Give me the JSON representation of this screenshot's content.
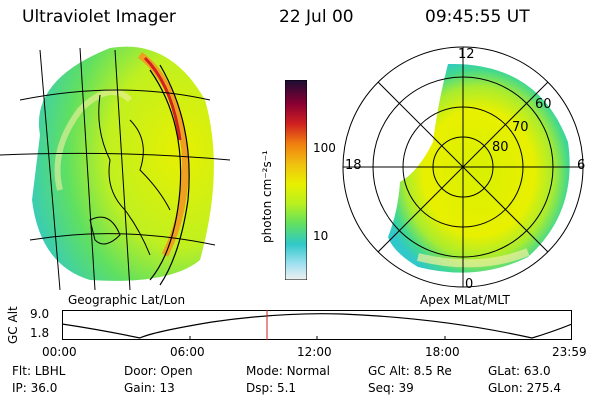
{
  "header": {
    "title": "Ultraviolet Imager",
    "date": "22 Jul 00",
    "time": "09:45:55 UT"
  },
  "left_panel": {
    "caption": "Geographic Lat/Lon"
  },
  "right_panel": {
    "caption": "Apex MLat/MLT",
    "mlt_labels": {
      "top": "12",
      "left": "18",
      "right": "6",
      "bottom": "0"
    },
    "lat_labels": [
      "60",
      "70",
      "80"
    ]
  },
  "colorbar": {
    "unit_label": "photon cm⁻²s⁻¹",
    "ticks": [
      "100",
      "10"
    ],
    "colors": [
      "#1a0d33",
      "#8a0033",
      "#d02020",
      "#f08010",
      "#f0c010",
      "#e8f000",
      "#b8f020",
      "#60e060",
      "#30c8c8",
      "#a0e0f0",
      "#f0f0f0"
    ]
  },
  "altitude_plot": {
    "ylabel": "GC Alt",
    "y_ticks": [
      "9.0",
      "1.8"
    ],
    "x_ticks": [
      "00:00",
      "06:00",
      "12:00",
      "18:00",
      "23:59"
    ],
    "marker_color": "#cc2222"
  },
  "status": {
    "flt": {
      "label": "Flt:",
      "value": "LBHL"
    },
    "ip": {
      "label": "IP:",
      "value": "36.0"
    },
    "door": {
      "label": "Door:",
      "value": "Open"
    },
    "gain": {
      "label": "Gain:",
      "value": "13"
    },
    "mode": {
      "label": "Mode:",
      "value": "Normal"
    },
    "dsp": {
      "label": "Dsp:",
      "value": "5.1"
    },
    "gc_alt": {
      "label": "GC Alt:",
      "value": "8.5 Re"
    },
    "seq": {
      "label": "Seq:",
      "value": "39"
    },
    "glat": {
      "label": "GLat:",
      "value": "63.0"
    },
    "glon": {
      "label": "GLon:",
      "value": "275.4"
    }
  }
}
